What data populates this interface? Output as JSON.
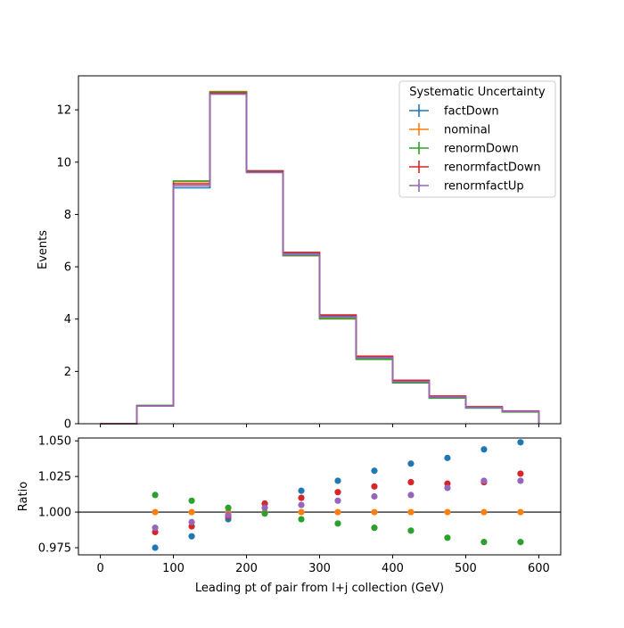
{
  "chart_data": [
    {
      "type": "line",
      "step": true,
      "ylabel": "Events",
      "xlim": [
        -30,
        630
      ],
      "ylim": [
        0,
        13.3
      ],
      "yticks": [
        0,
        2,
        4,
        6,
        8,
        10,
        12
      ],
      "xticks": [
        0,
        100,
        200,
        300,
        400,
        500,
        600
      ],
      "bin_edges": [
        0,
        50,
        100,
        150,
        200,
        250,
        300,
        350,
        400,
        450,
        500,
        550,
        600
      ],
      "legend": {
        "title": "Systematic Uncertainty",
        "placement": "top-right"
      },
      "series": [
        {
          "name": "factDown",
          "color": "#1f77b4",
          "values": [
            0,
            0.68,
            9.02,
            12.63,
            9.67,
            6.52,
            4.13,
            2.56,
            1.64,
            1.04,
            0.64,
            0.48
          ]
        },
        {
          "name": "nominal",
          "color": "#ff7f0e",
          "values": [
            0,
            0.69,
            9.25,
            12.7,
            9.61,
            6.42,
            4.04,
            2.49,
            1.58,
            1.0,
            0.61,
            0.46
          ]
        },
        {
          "name": "renormDown",
          "color": "#2ca02c",
          "values": [
            0,
            0.7,
            9.28,
            12.68,
            9.63,
            6.43,
            4.01,
            2.46,
            1.56,
            0.98,
            0.6,
            0.45
          ]
        },
        {
          "name": "renormfactDown",
          "color": "#d62728",
          "values": [
            0,
            0.68,
            9.17,
            12.64,
            9.66,
            6.55,
            4.16,
            2.58,
            1.66,
            1.06,
            0.65,
            0.49
          ]
        },
        {
          "name": "renormfactUp",
          "color": "#9467bd",
          "values": [
            0,
            0.68,
            9.1,
            12.6,
            9.6,
            6.46,
            4.08,
            2.52,
            1.61,
            1.02,
            0.62,
            0.47
          ]
        }
      ]
    },
    {
      "type": "scatter",
      "xlabel": "Leading pt of pair from l+j collection (GeV)",
      "ylabel": "Ratio",
      "xlim": [
        -30,
        630
      ],
      "ylim": [
        0.97,
        1.052
      ],
      "yticks": [
        0.975,
        1.0,
        1.025,
        1.05
      ],
      "ytick_labels": [
        "0.975",
        "1.000",
        "1.025",
        "1.050"
      ],
      "xticks": [
        0,
        100,
        200,
        300,
        400,
        500,
        600
      ],
      "reference_line": 1.0,
      "x": [
        75,
        125,
        175,
        225,
        275,
        325,
        375,
        425,
        475,
        525,
        575
      ],
      "series": [
        {
          "name": "factDown",
          "color": "#1f77b4",
          "values": [
            0.975,
            0.983,
            0.995,
            1.006,
            1.015,
            1.022,
            1.029,
            1.034,
            1.038,
            1.044,
            1.049
          ]
        },
        {
          "name": "nominal",
          "color": "#ff7f0e",
          "values": [
            1.0,
            1.0,
            1.0,
            1.0,
            1.0,
            1.0,
            1.0,
            1.0,
            1.0,
            1.0,
            1.0
          ]
        },
        {
          "name": "renormDown",
          "color": "#2ca02c",
          "values": [
            1.012,
            1.008,
            1.003,
            0.999,
            0.995,
            0.992,
            0.989,
            0.987,
            0.982,
            0.979,
            0.979
          ]
        },
        {
          "name": "renormfactDown",
          "color": "#d62728",
          "values": [
            0.986,
            0.99,
            0.997,
            1.006,
            1.01,
            1.014,
            1.018,
            1.021,
            1.02,
            1.021,
            1.027
          ]
        },
        {
          "name": "renormfactUp",
          "color": "#9467bd",
          "values": [
            0.989,
            0.993,
            0.998,
            1.003,
            1.005,
            1.008,
            1.011,
            1.012,
            1.017,
            1.022,
            1.022
          ]
        }
      ]
    }
  ]
}
